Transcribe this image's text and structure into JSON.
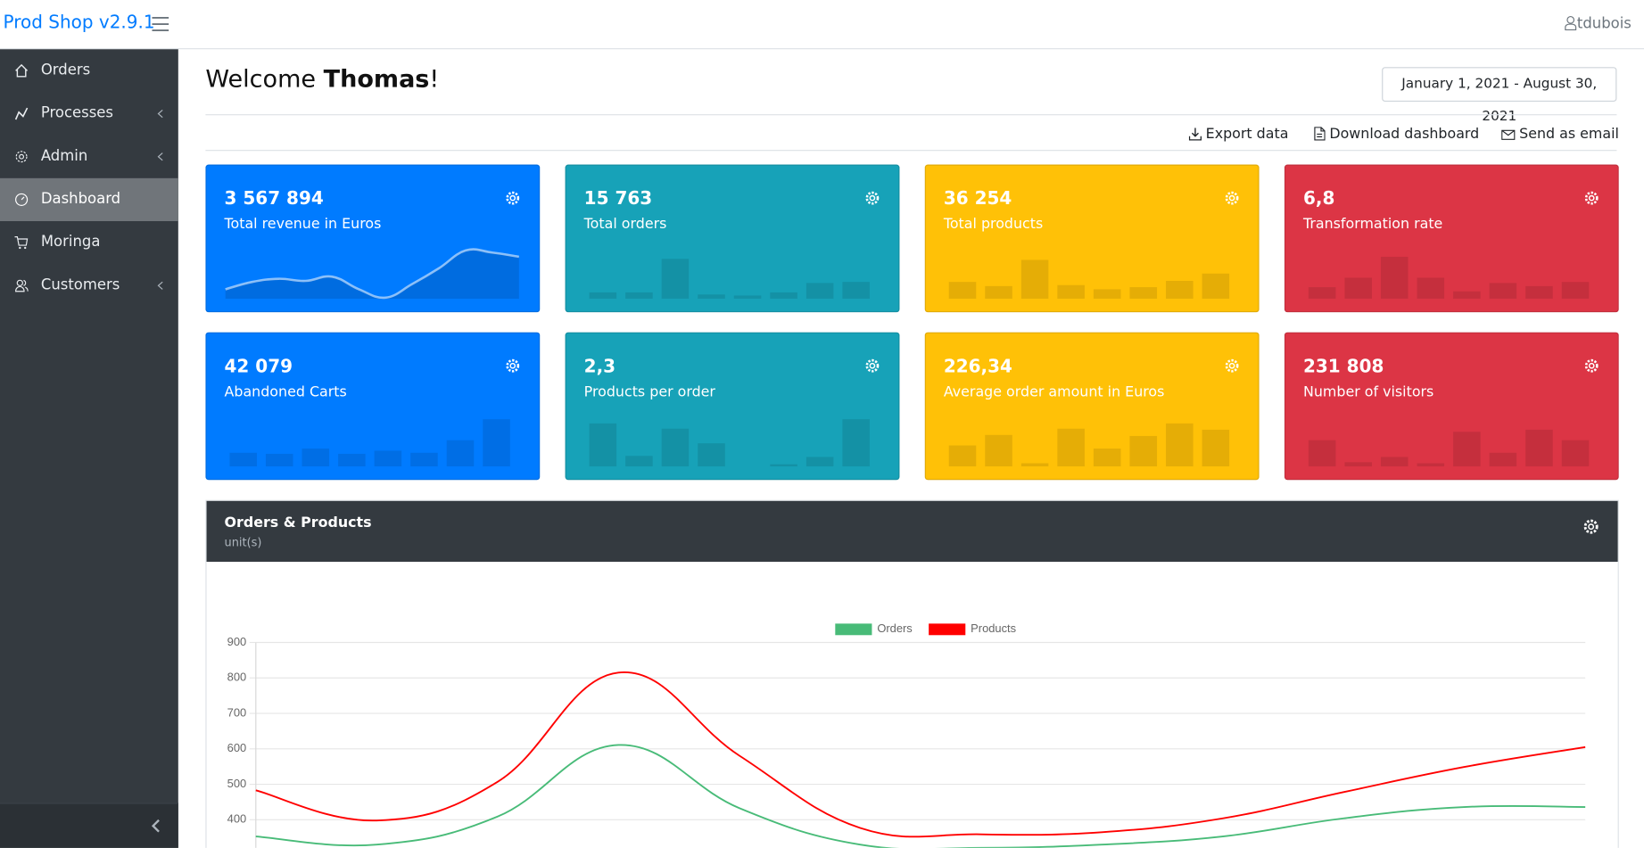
{
  "header": {
    "brand": "Prod Shop v2.9.1",
    "user": "tdubois"
  },
  "sidebar": {
    "items": [
      "Orders",
      "Processes",
      "Admin",
      "Dashboard",
      "Moringa",
      "Customers"
    ]
  },
  "welcome": {
    "prefix": "Welcome ",
    "name": "Thomas",
    "suffix": "!"
  },
  "date_range": "January 1, 2021 - August 30, 2021",
  "actions": [
    "Export data",
    "Download dashboard",
    "Send as email"
  ],
  "cards": [
    {
      "value": "3 567 894",
      "label": "Total revenue in Euros",
      "color": "#007bff",
      "spark": "line",
      "values": [
        9,
        16,
        19,
        17,
        21,
        9,
        1,
        14,
        29,
        46,
        44,
        40
      ]
    },
    {
      "value": "15 763",
      "label": "Total orders",
      "color": "#17a2b8",
      "spark": "bar",
      "values": [
        6,
        6,
        38,
        4,
        3,
        6,
        15,
        16
      ]
    },
    {
      "value": "36 254",
      "label": "Total products",
      "color": "#ffc107",
      "spark": "bar",
      "values": [
        16,
        12,
        37,
        13,
        9,
        11,
        17,
        24
      ]
    },
    {
      "value": "6,8",
      "label": "Transformation rate",
      "color": "#dc3545",
      "spark": "bar",
      "values": [
        11,
        20,
        40,
        20,
        7,
        15,
        12,
        16
      ]
    },
    {
      "value": "42 079",
      "label": "Abandoned Carts",
      "color": "#007bff",
      "spark": "bar",
      "values": [
        13,
        12,
        17,
        12,
        15,
        13,
        25,
        45
      ]
    },
    {
      "value": "2,3",
      "label": "Products per order",
      "color": "#17a2b8",
      "spark": "bar",
      "values": [
        41,
        10,
        36,
        22,
        0,
        2,
        9,
        45
      ]
    },
    {
      "value": "226,34",
      "label": "Average order amount in Euros",
      "color": "#ffc107",
      "spark": "bar",
      "values": [
        20,
        30,
        3,
        36,
        17,
        29,
        41,
        35
      ]
    },
    {
      "value": "231 808",
      "label": "Number of visitors",
      "color": "#dc3545",
      "spark": "bar",
      "values": [
        25,
        4,
        9,
        3,
        33,
        13,
        35,
        25
      ]
    }
  ],
  "orders_chart": {
    "type": "line",
    "title": "Orders & Products",
    "subtitle": "unit(s)",
    "categories": [
      null,
      null,
      null,
      null,
      null,
      null,
      null,
      null,
      null,
      null,
      null,
      null
    ],
    "series": [
      {
        "name": "Orders",
        "color": "#48bb78",
        "values": [
          353,
          330,
          409,
          611,
          433,
          330,
          321,
          330,
          353,
          404,
          436,
          436
        ]
      },
      {
        "name": "Products",
        "color": "#ff0000",
        "values": [
          483,
          398,
          507,
          815,
          581,
          377,
          359,
          365,
          404,
          478,
          549,
          605
        ]
      }
    ],
    "ylim": [
      300,
      900
    ],
    "yticks": [
      400,
      500,
      600,
      700,
      800,
      900
    ],
    "grid": true
  }
}
